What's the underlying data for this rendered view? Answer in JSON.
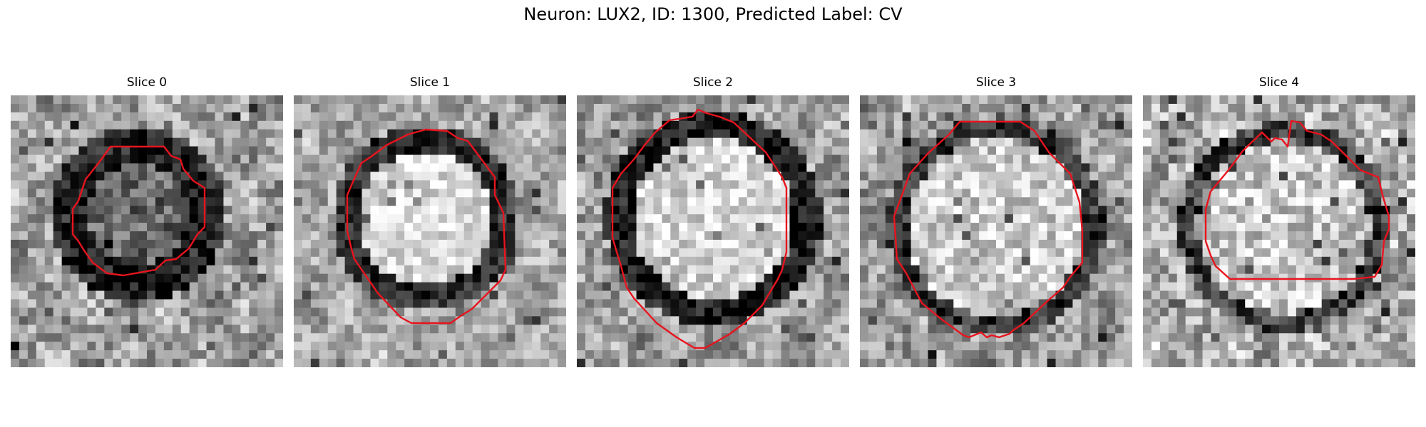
{
  "figure": {
    "title": "Neuron: LUX2, ID: 1300, Predicted Label: CV"
  },
  "colors": {
    "contour": "#e8141e",
    "background": "#ffffff"
  },
  "panels": [
    {
      "title": "Slice 0",
      "interior": "dark",
      "image": "grayscale-em-patch"
    },
    {
      "title": "Slice 1",
      "interior": "bright",
      "image": "grayscale-em-patch"
    },
    {
      "title": "Slice 2",
      "interior": "bright",
      "image": "grayscale-em-patch"
    },
    {
      "title": "Slice 3",
      "interior": "bright",
      "image": "grayscale-em-patch"
    },
    {
      "title": "Slice 4",
      "interior": "bright",
      "image": "grayscale-em-patch"
    }
  ]
}
